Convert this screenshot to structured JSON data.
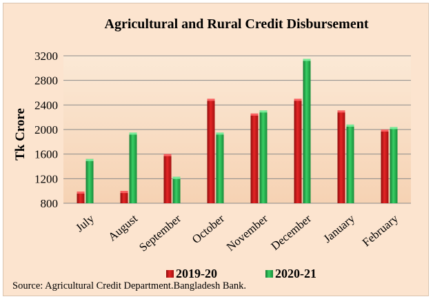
{
  "chart_data": {
    "type": "bar",
    "title": "Agricultural and Rural Credit Disbursement",
    "ylabel": "Tk Crore",
    "xlabel": "",
    "categories": [
      "July",
      "August",
      "September",
      "October",
      "November",
      "December",
      "January",
      "February"
    ],
    "series": [
      {
        "name": "2019-20",
        "color": "#d81c1c",
        "values": [
          990,
          1000,
          1600,
          2500,
          2260,
          2500,
          2310,
          2000
        ]
      },
      {
        "name": "2020-21",
        "color": "#22b34a",
        "values": [
          1520,
          1950,
          1230,
          1950,
          2310,
          3150,
          2080,
          2040
        ]
      }
    ],
    "ylim": [
      800,
      3200
    ],
    "yticks": [
      "800",
      "1200",
      "1600",
      "2000",
      "2400",
      "2800",
      "3200"
    ],
    "grid": true,
    "legend_position": "bottom"
  },
  "source_note": "Source: Agricultural Credit Department.Bangladesh Bank."
}
